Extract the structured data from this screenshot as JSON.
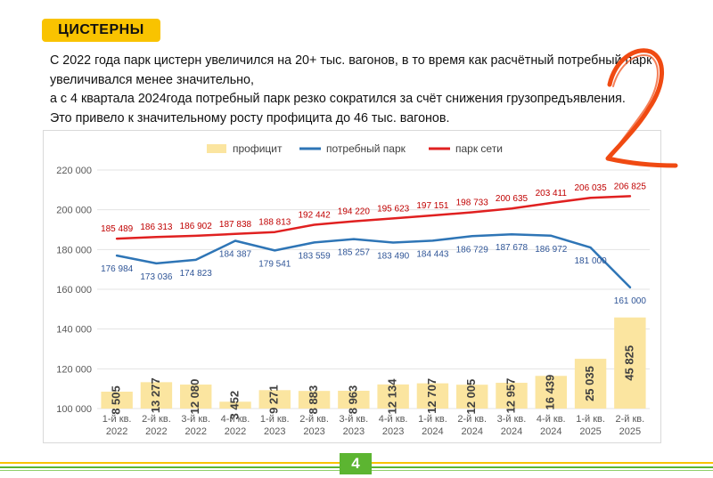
{
  "header": {
    "tag": "ЦИСТЕРНЫ",
    "lines": [
      "С 2022 года парк цистерн увеличился на 20+ тыс. вагонов, в то время как расчётный потребный парк",
      "увеличивался менее значительно,",
      "а с 4 квартала 2024года потребный парк резко сократился за счёт снижения грузопредъявления.",
      "Это привело к значительному росту профицита до 46 тыс. вагонов."
    ]
  },
  "annotation": "2",
  "page_number": "4",
  "colors": {
    "accent": "#f9c300",
    "bar": "#fbe5a0",
    "demand_line": "#2e75b6",
    "network_line": "#e02020",
    "green": "#5cb531",
    "annotation": "#f04a12"
  },
  "chart_data": {
    "type": "bar",
    "legend_position": "top",
    "grid": true,
    "ylim": [
      100000,
      220000
    ],
    "yticks": [
      100000,
      120000,
      140000,
      160000,
      180000,
      200000,
      220000
    ],
    "ytick_labels": [
      "100 000",
      "120 000",
      "140 000",
      "160 000",
      "180 000",
      "200 000",
      "220 000"
    ],
    "categories": [
      [
        "1-й кв.",
        "2022"
      ],
      [
        "2-й кв.",
        "2022"
      ],
      [
        "3-й кв.",
        "2022"
      ],
      [
        "4-й кв.",
        "2022"
      ],
      [
        "1-й кв.",
        "2023"
      ],
      [
        "2-й кв.",
        "2023"
      ],
      [
        "3-й кв.",
        "2023"
      ],
      [
        "4-й кв.",
        "2023"
      ],
      [
        "1-й кв.",
        "2024"
      ],
      [
        "2-й кв.",
        "2024"
      ],
      [
        "3-й кв.",
        "2024"
      ],
      [
        "4-й кв.",
        "2024"
      ],
      [
        "1-й кв.",
        "2025"
      ],
      [
        "2-й кв.",
        "2025"
      ]
    ],
    "series": [
      {
        "name": "профицит",
        "kind": "bar",
        "values": [
          8505,
          13277,
          12080,
          3452,
          9271,
          8883,
          8963,
          12134,
          12707,
          12005,
          12957,
          16439,
          25035,
          45825
        ],
        "labels": [
          "8 505",
          "13 277",
          "12 080",
          "3 452",
          "9 271",
          "8 883",
          "8 963",
          "12 134",
          "12 707",
          "12 005",
          "12 957",
          "16 439",
          "25 035",
          "45 825"
        ]
      },
      {
        "name": "потребный парк",
        "kind": "line",
        "values": [
          176984,
          173036,
          174823,
          184387,
          179541,
          183559,
          185257,
          183490,
          184443,
          186729,
          187678,
          186972,
          181000,
          161000
        ],
        "labels": [
          "176 984",
          "173 036",
          "174 823",
          "184 387",
          "179 541",
          "183 559",
          "185 257",
          "183 490",
          "184 443",
          "186 729",
          "187 678",
          "186 972",
          "181 000",
          "161 000"
        ]
      },
      {
        "name": "парк сети",
        "kind": "line",
        "values": [
          185489,
          186313,
          186902,
          187838,
          188813,
          192442,
          194220,
          195623,
          197151,
          198733,
          200635,
          203411,
          206035,
          206825
        ],
        "labels": [
          "185 489",
          "186 313",
          "186 902",
          "187 838",
          "188 813",
          "192 442",
          "194 220",
          "195 623",
          "197 151",
          "198 733",
          "200 635",
          "203 411",
          "206 035",
          "206 825"
        ]
      }
    ]
  }
}
